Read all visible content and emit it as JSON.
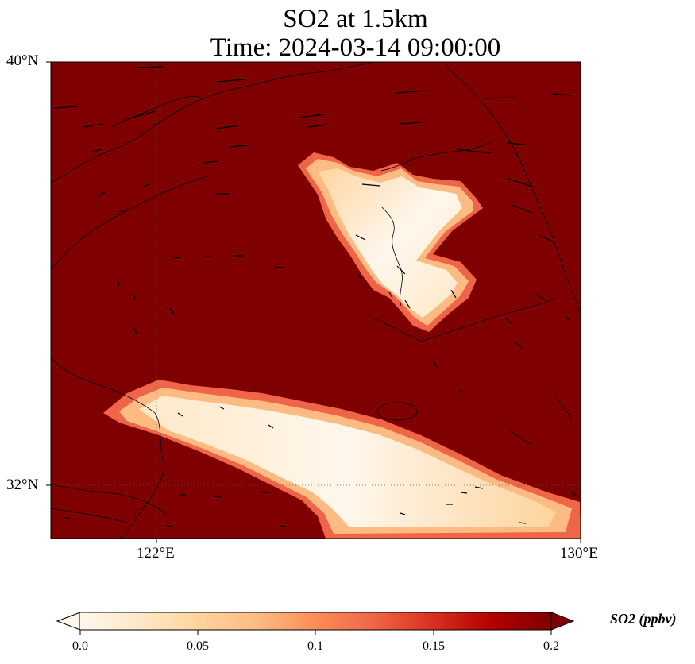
{
  "title": {
    "line1": "SO2 at 1.5km",
    "line2": "Time: 2024-03-14 09:00:00"
  },
  "map": {
    "background_color": "#7f0000",
    "coastline_color": "#000000",
    "gridline_style": "dotted",
    "lon_range": [
      120,
      130
    ],
    "lat_range": [
      31,
      40
    ],
    "lat_ticks": [
      {
        "value": 40,
        "label": "40°N"
      },
      {
        "value": 32,
        "label": "32°N"
      }
    ],
    "lon_ticks": [
      {
        "value": 122,
        "label": "122°E"
      },
      {
        "value": 130,
        "label": "130°E"
      }
    ],
    "plume_colors": {
      "low": "#fff7ec",
      "mid": "#fdd49e",
      "high": "#ef6548",
      "edge": "#d7301f"
    }
  },
  "colorbar": {
    "label": "SO2 (ppbv)",
    "extend": "both",
    "ticks": [
      "0.0",
      "0.05",
      "0.1",
      "0.15",
      "0.2"
    ],
    "colormap": [
      "#fff7ec",
      "#fee8c8",
      "#fdd49e",
      "#fdbb84",
      "#fc8d59",
      "#ef6548",
      "#d7301f",
      "#b30000",
      "#7f0000"
    ]
  }
}
